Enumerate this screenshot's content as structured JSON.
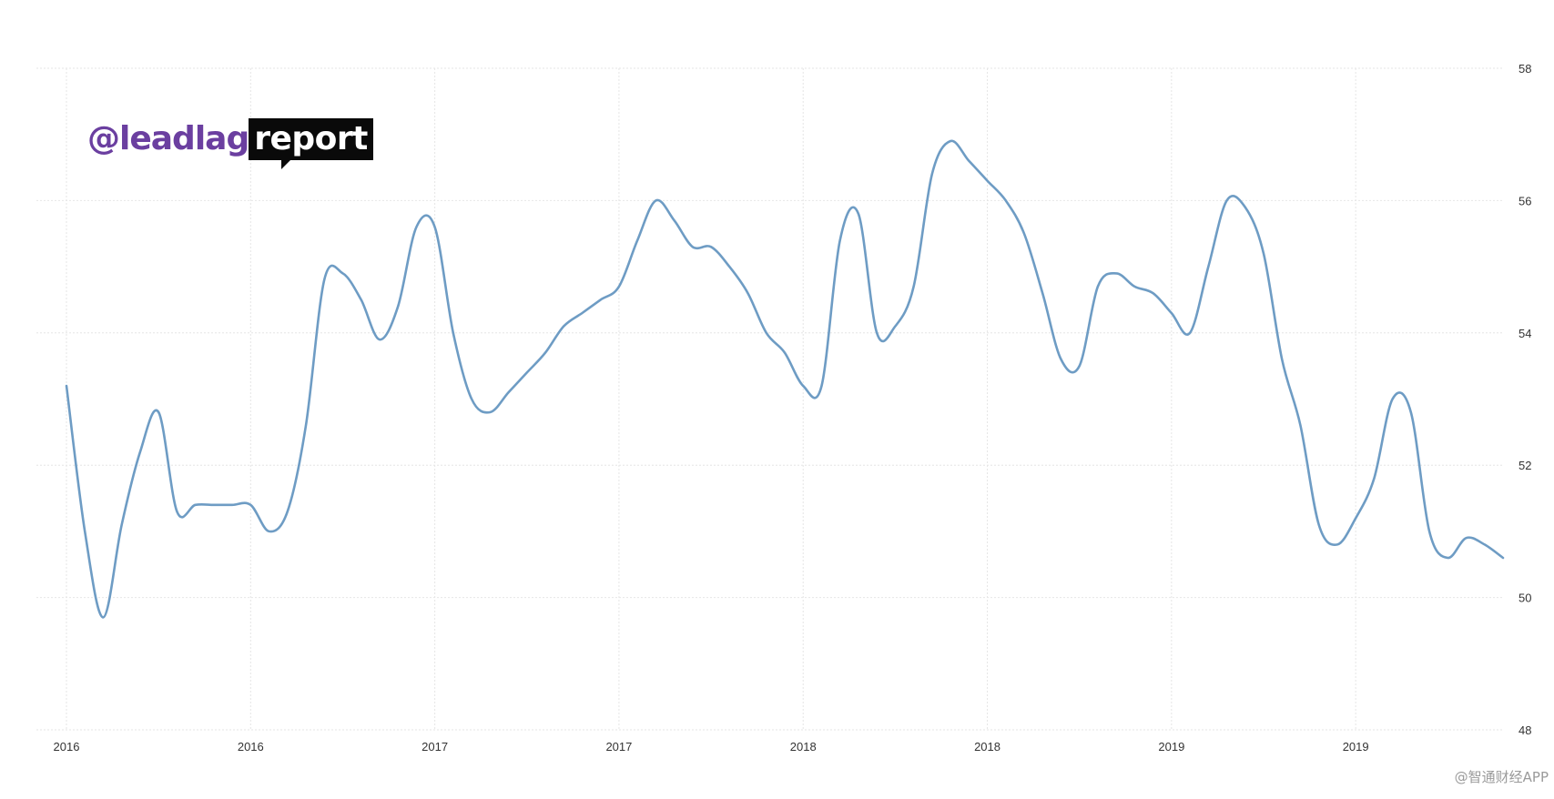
{
  "logo": {
    "left_text": "@leadlag",
    "right_text": "report"
  },
  "watermark": "@智通财经APP",
  "colors": {
    "line": "#6e9cc4",
    "grid": "#e6e6e6",
    "logo_purple": "#6b3fa0"
  },
  "chart_data": {
    "type": "line",
    "title": "",
    "xlabel": "",
    "ylabel": "",
    "ylim": [
      48,
      58
    ],
    "y_ticks": [
      48,
      50,
      52,
      54,
      56,
      58
    ],
    "y_axis_position": "right",
    "grid": true,
    "x_tick_labels": [
      "2016",
      "2016",
      "2017",
      "2017",
      "2018",
      "2018",
      "2019",
      "2019"
    ],
    "x_tick_index": [
      0,
      10,
      20,
      30,
      40,
      50,
      60,
      70
    ],
    "series": [
      {
        "values": [
          53.2,
          51.0,
          49.7,
          51.1,
          52.2,
          52.8,
          51.3,
          51.4,
          51.4,
          51.4,
          51.4,
          51.0,
          51.3,
          52.6,
          54.8,
          54.9,
          54.5,
          53.9,
          54.4,
          55.6,
          55.6,
          54.0,
          53.0,
          52.8,
          53.1,
          53.4,
          53.7,
          54.1,
          54.3,
          54.5,
          54.7,
          55.4,
          56.0,
          55.7,
          55.3,
          55.3,
          55.0,
          54.6,
          54.0,
          53.7,
          53.2,
          53.2,
          55.4,
          55.8,
          54.0,
          54.1,
          54.7,
          56.4,
          56.9,
          56.6,
          56.3,
          56.0,
          55.5,
          54.6,
          53.6,
          53.5,
          54.7,
          54.9,
          54.7,
          54.6,
          54.3,
          54.0,
          55.0,
          56.0,
          55.9,
          55.2,
          53.6,
          52.6,
          51.1,
          50.8,
          51.2,
          51.8,
          53.0,
          52.8,
          51.0,
          50.6,
          50.9,
          50.8,
          50.6
        ]
      }
    ]
  }
}
